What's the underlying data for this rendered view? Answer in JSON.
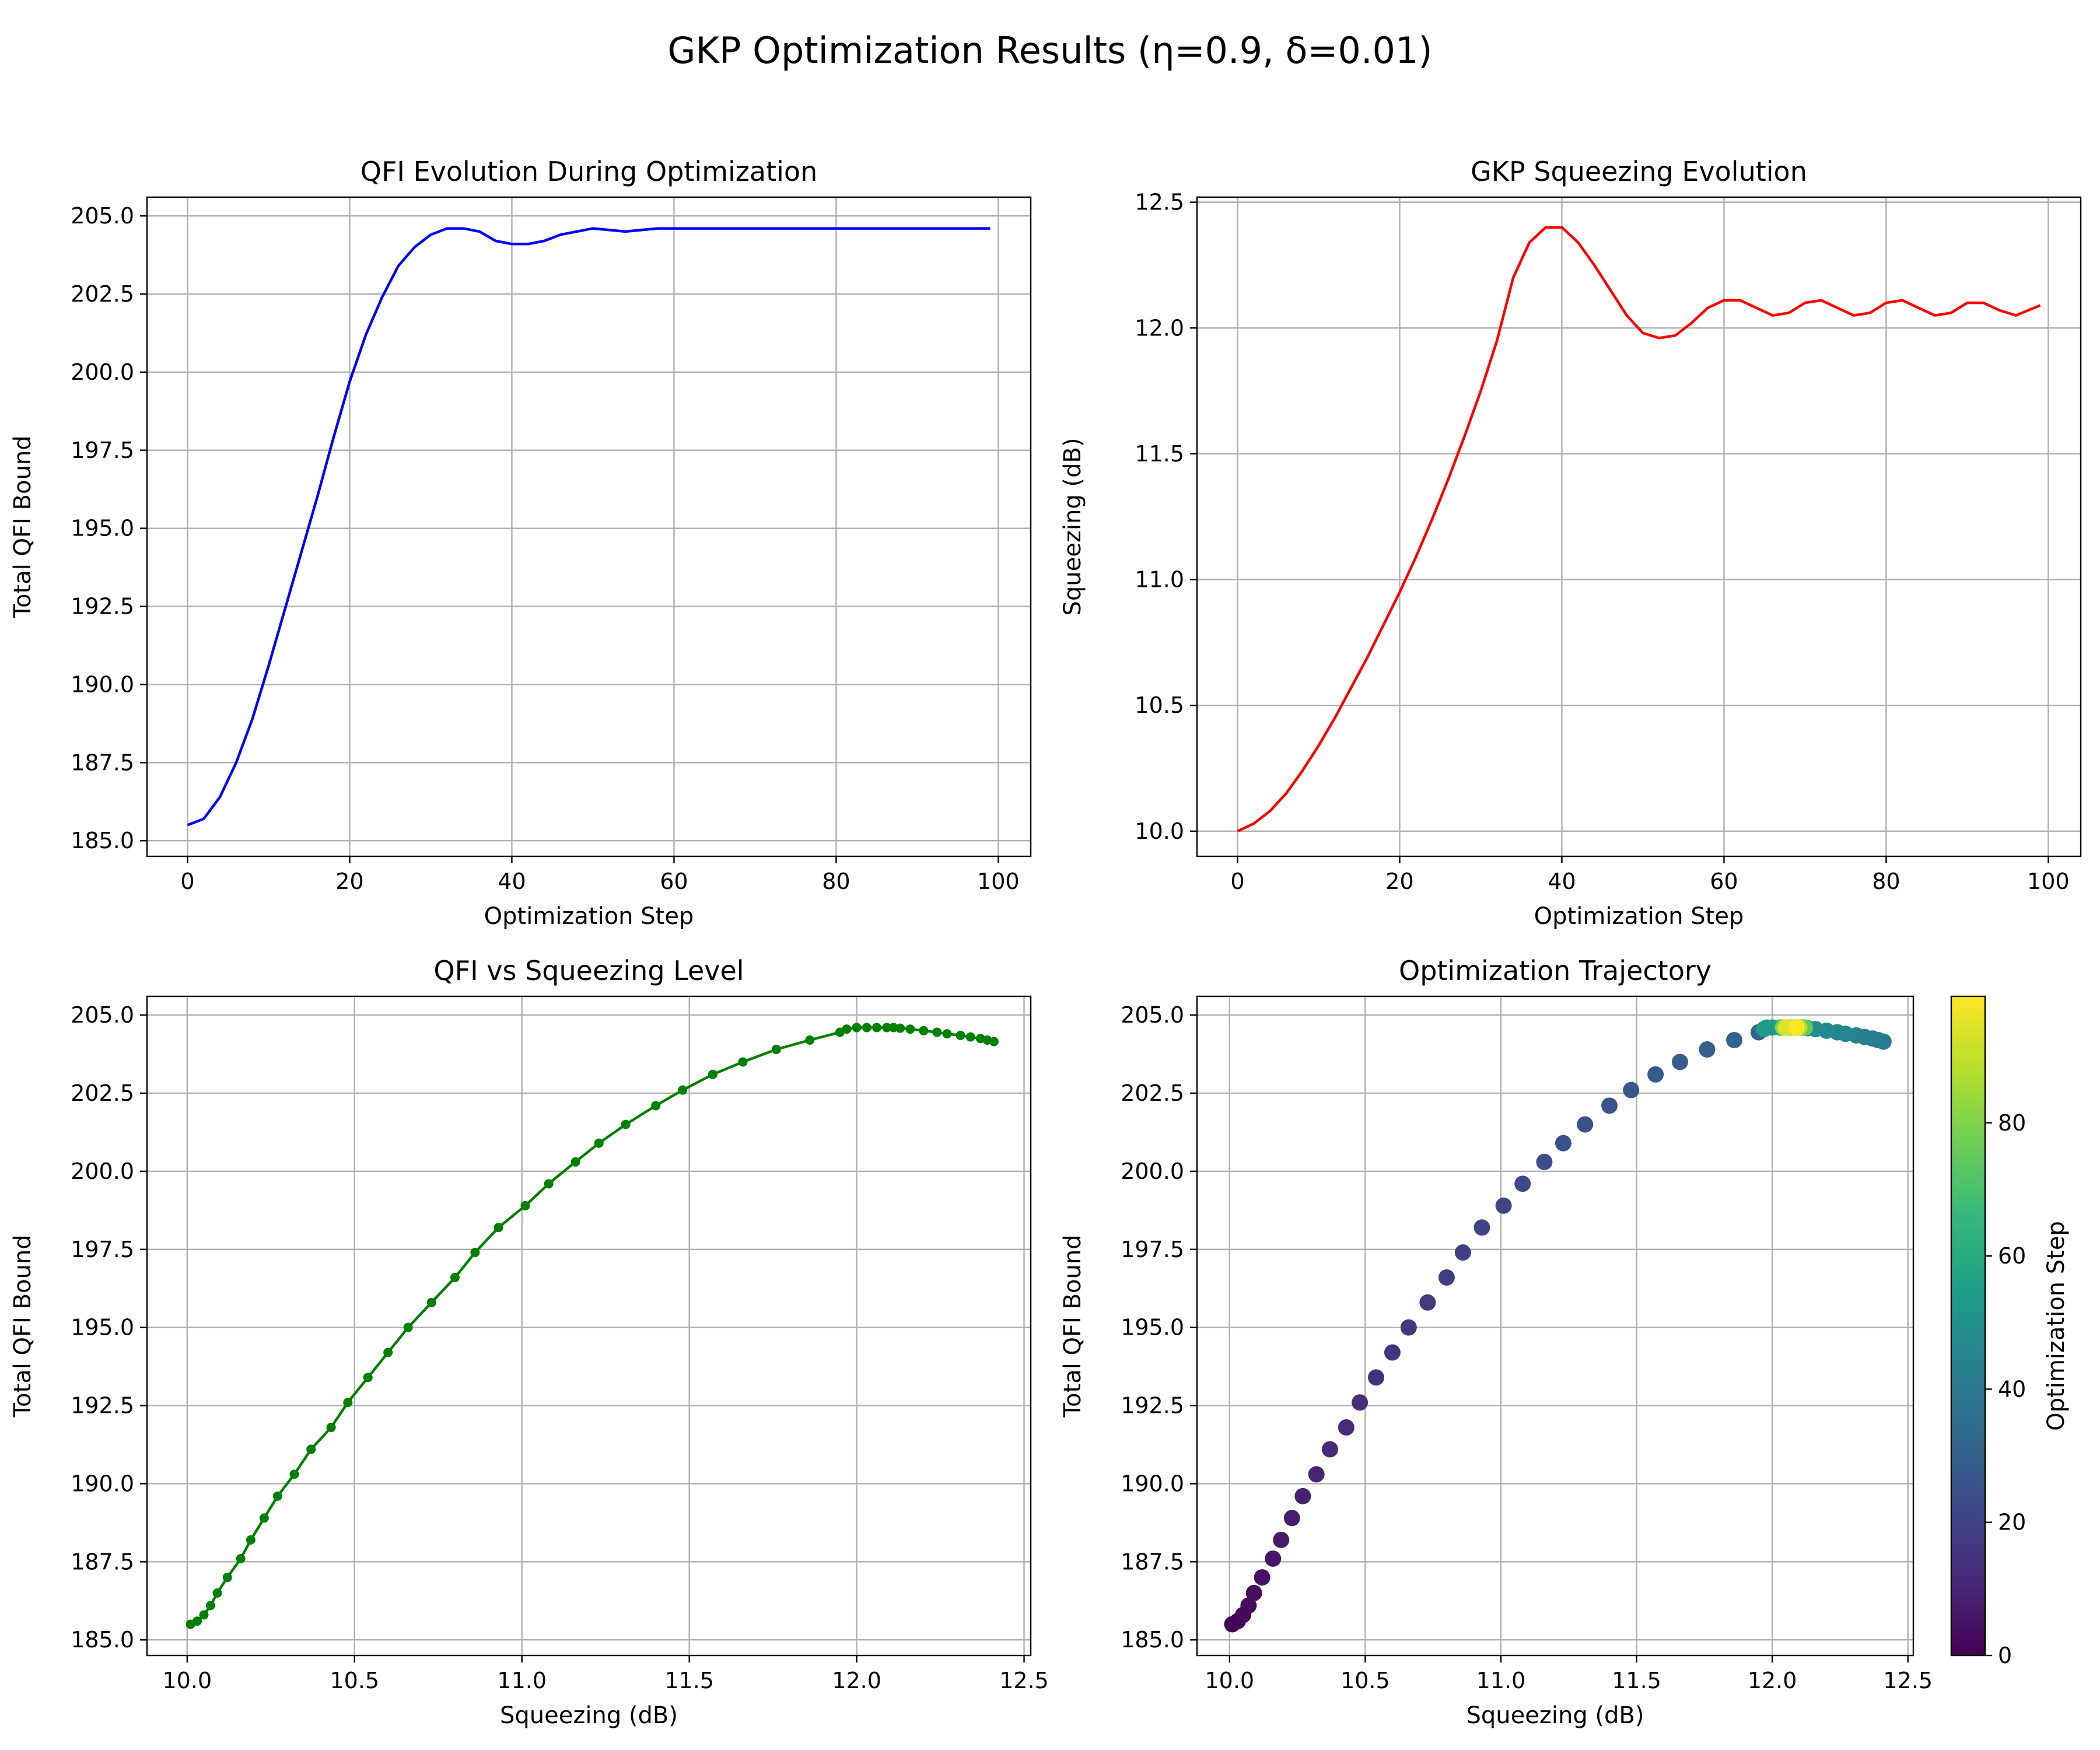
{
  "figure": {
    "suptitle": "GKP Optimization Results (η=0.9, δ=0.01)"
  },
  "colors": {
    "qfi_line": "#0000ff",
    "squeezing_line": "#ff0000",
    "qfi_vs_squeezing": "#008000",
    "grid": "#b0b0b0",
    "viridis": [
      "#440154",
      "#482878",
      "#3e4989",
      "#31688e",
      "#26828e",
      "#1f9e89",
      "#35b779",
      "#6ece58",
      "#b5de2b",
      "#fde725"
    ]
  },
  "chart_data": [
    {
      "type": "line",
      "title": "QFI Evolution During Optimization",
      "xlabel": "Optimization Step",
      "ylabel": "Total QFI Bound",
      "xlim": [
        -5,
        104
      ],
      "ylim": [
        184.5,
        205.6
      ],
      "xticks": [
        0,
        20,
        40,
        60,
        80,
        100
      ],
      "xtick_labels": [
        "0",
        "20",
        "40",
        "60",
        "80",
        "100"
      ],
      "yticks": [
        185.0,
        187.5,
        190.0,
        192.5,
        195.0,
        197.5,
        200.0,
        202.5,
        205.0
      ],
      "ytick_labels": [
        "185.0",
        "187.5",
        "190.0",
        "192.5",
        "195.0",
        "197.5",
        "200.0",
        "202.5",
        "205.0"
      ],
      "grid": true,
      "series": [
        {
          "x": [
            0,
            2,
            4,
            6,
            8,
            10,
            12,
            14,
            16,
            18,
            20,
            22,
            24,
            26,
            28,
            30,
            32,
            34,
            36,
            38,
            40,
            42,
            44,
            46,
            48,
            50,
            52,
            54,
            56,
            58,
            60,
            65,
            70,
            75,
            80,
            85,
            90,
            95,
            99
          ],
          "y": [
            185.5,
            185.7,
            186.4,
            187.5,
            188.9,
            190.6,
            192.4,
            194.2,
            196.0,
            197.9,
            199.7,
            201.2,
            202.4,
            203.4,
            204.0,
            204.4,
            204.6,
            204.6,
            204.5,
            204.2,
            204.1,
            204.1,
            204.2,
            204.4,
            204.5,
            204.6,
            204.55,
            204.5,
            204.55,
            204.6,
            204.6,
            204.6,
            204.6,
            204.6,
            204.6,
            204.6,
            204.6,
            204.6,
            204.6
          ]
        }
      ]
    },
    {
      "type": "line",
      "title": "GKP Squeezing Evolution",
      "xlabel": "Optimization Step",
      "ylabel": "Squeezing (dB)",
      "xlim": [
        -5,
        104
      ],
      "ylim": [
        9.9,
        12.52
      ],
      "xticks": [
        0,
        20,
        40,
        60,
        80,
        100
      ],
      "xtick_labels": [
        "0",
        "20",
        "40",
        "60",
        "80",
        "100"
      ],
      "yticks": [
        10.0,
        10.5,
        11.0,
        11.5,
        12.0,
        12.5
      ],
      "ytick_labels": [
        "10.0",
        "10.5",
        "11.0",
        "11.5",
        "12.0",
        "12.5"
      ],
      "grid": true,
      "series": [
        {
          "x": [
            0,
            2,
            4,
            6,
            8,
            10,
            12,
            14,
            16,
            18,
            20,
            22,
            24,
            26,
            28,
            30,
            32,
            34,
            36,
            38,
            40,
            42,
            44,
            46,
            48,
            50,
            52,
            54,
            56,
            58,
            60,
            62,
            64,
            66,
            68,
            70,
            72,
            74,
            76,
            78,
            80,
            82,
            84,
            86,
            88,
            90,
            92,
            94,
            96,
            99
          ],
          "y": [
            10.0,
            10.03,
            10.08,
            10.15,
            10.24,
            10.34,
            10.45,
            10.57,
            10.69,
            10.82,
            10.95,
            11.09,
            11.24,
            11.4,
            11.57,
            11.75,
            11.95,
            12.2,
            12.34,
            12.4,
            12.4,
            12.34,
            12.25,
            12.15,
            12.05,
            11.98,
            11.96,
            11.97,
            12.02,
            12.08,
            12.11,
            12.11,
            12.08,
            12.05,
            12.06,
            12.1,
            12.11,
            12.08,
            12.05,
            12.06,
            12.1,
            12.11,
            12.08,
            12.05,
            12.06,
            12.1,
            12.1,
            12.07,
            12.05,
            12.09
          ]
        }
      ]
    },
    {
      "type": "line",
      "title": "QFI vs Squeezing Level",
      "xlabel": "Squeezing (dB)",
      "ylabel": "Total QFI Bound",
      "xlim": [
        9.88,
        12.52
      ],
      "ylim": [
        184.5,
        205.6
      ],
      "xticks": [
        10.0,
        10.5,
        11.0,
        11.5,
        12.0,
        12.5
      ],
      "xtick_labels": [
        "10.0",
        "10.5",
        "11.0",
        "11.5",
        "12.0",
        "12.5"
      ],
      "yticks": [
        185.0,
        187.5,
        190.0,
        192.5,
        195.0,
        197.5,
        200.0,
        202.5,
        205.0
      ],
      "ytick_labels": [
        "185.0",
        "187.5",
        "190.0",
        "192.5",
        "195.0",
        "197.5",
        "200.0",
        "202.5",
        "205.0"
      ],
      "grid": true,
      "markers": true,
      "series": [
        {
          "x": [
            10.01,
            10.03,
            10.05,
            10.07,
            10.09,
            10.12,
            10.16,
            10.19,
            10.23,
            10.27,
            10.32,
            10.37,
            10.43,
            10.48,
            10.54,
            10.6,
            10.66,
            10.73,
            10.8,
            10.86,
            10.93,
            11.01,
            11.08,
            11.16,
            11.23,
            11.31,
            11.4,
            11.48,
            11.57,
            11.66,
            11.76,
            11.86,
            11.95,
            11.97,
            12.0,
            12.03,
            12.06,
            12.09,
            12.11,
            12.13,
            12.16,
            12.2,
            12.24,
            12.27,
            12.31,
            12.34,
            12.37,
            12.39,
            12.41
          ],
          "y": [
            185.5,
            185.6,
            185.8,
            186.1,
            186.5,
            187.0,
            187.6,
            188.2,
            188.9,
            189.6,
            190.3,
            191.1,
            191.8,
            192.6,
            193.4,
            194.2,
            195.0,
            195.8,
            196.6,
            197.4,
            198.2,
            198.9,
            199.6,
            200.3,
            200.9,
            201.5,
            202.1,
            202.6,
            203.1,
            203.5,
            203.9,
            204.2,
            204.45,
            204.55,
            204.6,
            204.6,
            204.6,
            204.6,
            204.6,
            204.58,
            204.55,
            204.5,
            204.45,
            204.4,
            204.35,
            204.3,
            204.25,
            204.2,
            204.15
          ]
        }
      ]
    },
    {
      "type": "scatter",
      "title": "Optimization Trajectory",
      "xlabel": "Squeezing (dB)",
      "ylabel": "Total QFI Bound",
      "xlim": [
        9.88,
        12.52
      ],
      "ylim": [
        184.5,
        205.6
      ],
      "xticks": [
        10.0,
        10.5,
        11.0,
        11.5,
        12.0,
        12.5
      ],
      "xtick_labels": [
        "10.0",
        "10.5",
        "11.0",
        "11.5",
        "12.0",
        "12.5"
      ],
      "yticks": [
        185.0,
        187.5,
        190.0,
        192.5,
        195.0,
        197.5,
        200.0,
        202.5,
        205.0
      ],
      "ytick_labels": [
        "185.0",
        "187.5",
        "190.0",
        "192.5",
        "195.0",
        "197.5",
        "200.0",
        "202.5",
        "205.0"
      ],
      "grid": true,
      "colorbar": {
        "label": "Optimization Step",
        "range": [
          0,
          99
        ],
        "ticks": [
          0,
          20,
          40,
          60,
          80
        ],
        "tick_labels": [
          "0",
          "20",
          "40",
          "60",
          "80"
        ]
      },
      "series": [
        {
          "x": [
            10.01,
            10.03,
            10.05,
            10.07,
            10.09,
            10.12,
            10.16,
            10.19,
            10.23,
            10.27,
            10.32,
            10.37,
            10.43,
            10.48,
            10.54,
            10.6,
            10.66,
            10.73,
            10.8,
            10.86,
            10.93,
            11.01,
            11.08,
            11.16,
            11.23,
            11.31,
            11.4,
            11.48,
            11.57,
            11.66,
            11.76,
            11.86,
            11.95,
            12.41,
            12.39,
            12.37,
            12.34,
            12.31,
            12.27,
            12.24,
            12.2,
            12.16,
            12.13,
            12.11,
            12.06,
            12.0,
            11.97,
            11.98,
            12.03,
            12.09,
            12.12,
            12.08,
            12.04,
            12.05,
            12.1,
            12.12,
            12.07,
            12.04,
            12.06,
            12.1,
            12.08,
            12.05,
            12.09
          ],
          "y": [
            185.5,
            185.6,
            185.8,
            186.1,
            186.5,
            187.0,
            187.6,
            188.2,
            188.9,
            189.6,
            190.3,
            191.1,
            191.8,
            192.6,
            193.4,
            194.2,
            195.0,
            195.8,
            196.6,
            197.4,
            198.2,
            198.9,
            199.6,
            200.3,
            200.9,
            201.5,
            202.1,
            202.6,
            203.1,
            203.5,
            203.9,
            204.2,
            204.45,
            204.15,
            204.2,
            204.25,
            204.3,
            204.35,
            204.4,
            204.45,
            204.5,
            204.55,
            204.58,
            204.6,
            204.6,
            204.6,
            204.55,
            204.6,
            204.6,
            204.6,
            204.6,
            204.6,
            204.6,
            204.6,
            204.6,
            204.6,
            204.6,
            204.6,
            204.6,
            204.6,
            204.6,
            204.6,
            204.6
          ],
          "c": [
            0,
            1,
            2,
            3,
            4,
            5,
            6,
            7,
            8,
            9,
            10,
            11,
            12,
            13,
            14,
            15,
            16,
            17,
            18,
            19,
            20,
            21,
            22,
            23,
            24,
            25,
            26,
            27,
            28,
            29,
            30,
            31,
            32,
            40,
            41,
            42,
            43,
            44,
            45,
            46,
            47,
            48,
            49,
            50,
            51,
            52,
            53,
            54,
            56,
            58,
            60,
            62,
            64,
            66,
            70,
            75,
            78,
            80,
            84,
            88,
            90,
            94,
            99
          ]
        }
      ]
    }
  ]
}
